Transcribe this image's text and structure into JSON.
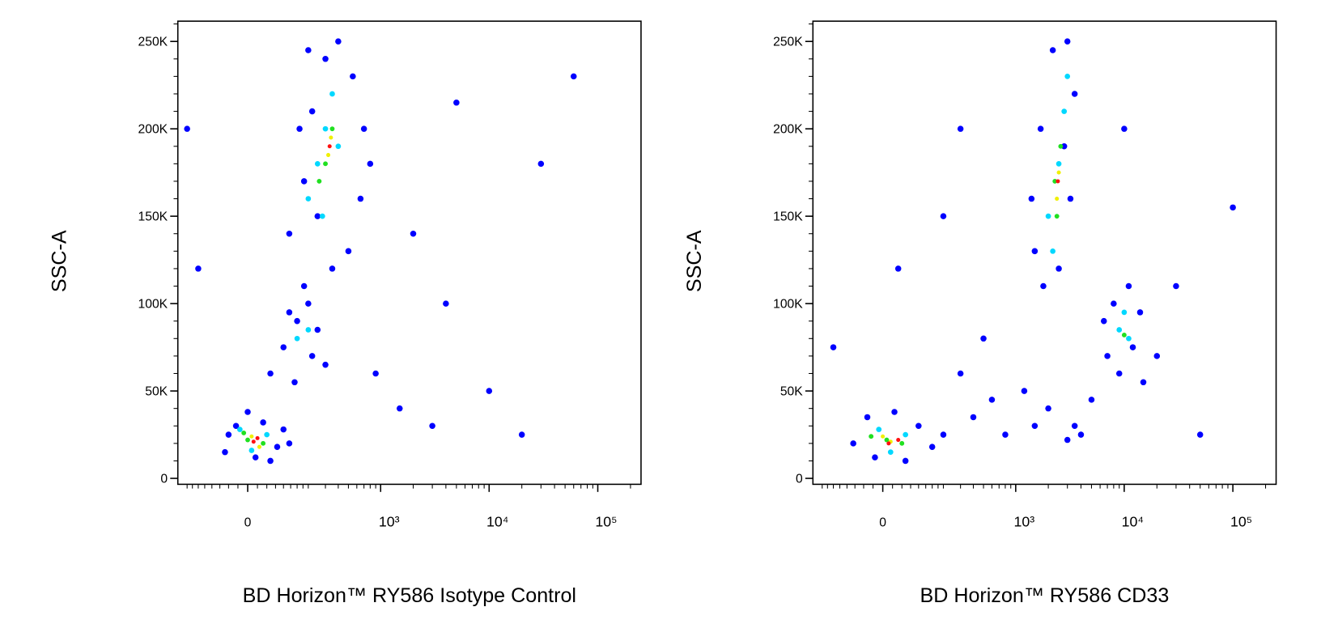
{
  "chart_data": [
    {
      "type": "scatter",
      "xlabel": "BD Horizon™ RY586 Isotype Control",
      "ylabel": "SSC-A",
      "xscale": "biexponential",
      "xlim": [
        -250,
        250000
      ],
      "ylim": [
        -3400,
        261600
      ],
      "xticks": [
        0,
        {
          "value": 1000,
          "label": "10³"
        },
        {
          "value": 10000,
          "label": "10⁴"
        },
        {
          "value": 100000,
          "label": "10⁵"
        }
      ],
      "yticks": [
        0,
        {
          "value": 50000,
          "label": "50K"
        },
        {
          "value": 100000,
          "label": "100K"
        },
        {
          "value": 150000,
          "label": "150K"
        },
        {
          "value": 200000,
          "label": "200K"
        },
        {
          "value": 250000,
          "label": "250K"
        }
      ],
      "series": [
        {
          "color": "#0000ff",
          "x": [
            -60,
            -30,
            0,
            40,
            80,
            60,
            -50,
            20,
            100,
            120,
            60,
            100,
            150,
            200,
            250,
            220,
            140,
            300,
            180,
            120,
            120,
            180,
            220,
            300,
            400,
            550,
            700,
            650,
            500,
            350,
            250,
            160,
            200,
            800,
            1500,
            3000,
            5000,
            30000,
            60000,
            2000,
            900,
            20000,
            -200,
            -150,
            10000,
            4000
          ],
          "values": [
            15000,
            30000,
            38000,
            32000,
            18000,
            10000,
            25000,
            12000,
            28000,
            20000,
            60000,
            75000,
            90000,
            100000,
            85000,
            70000,
            55000,
            65000,
            110000,
            95000,
            140000,
            170000,
            210000,
            240000,
            250000,
            230000,
            200000,
            160000,
            130000,
            120000,
            150000,
            200000,
            245000,
            180000,
            40000,
            30000,
            215000,
            180000,
            230000,
            140000,
            60000,
            25000,
            200000,
            120000,
            50000,
            100000
          ]
        },
        {
          "color": "#00d8ff",
          "x": [
            -20,
            50,
            10,
            150,
            200,
            200,
            300,
            350,
            250,
            400,
            280
          ],
          "values": [
            28000,
            25000,
            16000,
            80000,
            85000,
            160000,
            200000,
            220000,
            180000,
            190000,
            150000
          ]
        },
        {
          "color": "#20e020",
          "x": [
            0,
            40,
            -10,
            300,
            350,
            260
          ],
          "values": [
            22000,
            20000,
            26000,
            180000,
            200000,
            170000
          ]
        },
        {
          "color": "#f0f000",
          "x": [
            10,
            30,
            320,
            340
          ],
          "values": [
            24000,
            18000,
            185000,
            195000
          ]
        },
        {
          "color": "#ff1010",
          "x": [
            15,
            25,
            330
          ],
          "values": [
            21000,
            23000,
            190000
          ]
        }
      ]
    },
    {
      "type": "scatter",
      "xlabel": "BD Horizon™ RY586 CD33",
      "ylabel": "SSC-A",
      "xscale": "biexponential",
      "xlim": [
        -250,
        250000
      ],
      "ylim": [
        -3400,
        261600
      ],
      "xticks": [
        0,
        {
          "value": 1000,
          "label": "10³"
        },
        {
          "value": 10000,
          "label": "10⁴"
        },
        {
          "value": 100000,
          "label": "10⁵"
        }
      ],
      "yticks": [
        0,
        {
          "value": 50000,
          "label": "50K"
        },
        {
          "value": 100000,
          "label": "100K"
        },
        {
          "value": 150000,
          "label": "150K"
        },
        {
          "value": 200000,
          "label": "200K"
        },
        {
          "value": 250000,
          "label": "250K"
        }
      ],
      "series": [
        {
          "color": "#0000ff",
          "x": [
            -80,
            -40,
            30,
            100,
            150,
            60,
            -20,
            200,
            400,
            600,
            800,
            1200,
            1500,
            300,
            500,
            -150,
            2000,
            40,
            200,
            300,
            1500,
            1800,
            2500,
            3200,
            3500,
            3000,
            2200,
            1700,
            1400,
            2800,
            7000,
            9000,
            12000,
            14000,
            11000,
            8000,
            6500,
            15000,
            20000,
            3000,
            3500,
            4000,
            5000,
            50000,
            100000,
            30000,
            10000
          ],
          "values": [
            20000,
            35000,
            38000,
            30000,
            18000,
            10000,
            12000,
            25000,
            35000,
            45000,
            25000,
            50000,
            30000,
            60000,
            80000,
            75000,
            40000,
            120000,
            150000,
            200000,
            130000,
            110000,
            120000,
            160000,
            220000,
            250000,
            245000,
            200000,
            160000,
            190000,
            70000,
            60000,
            75000,
            95000,
            110000,
            100000,
            90000,
            55000,
            70000,
            22000,
            30000,
            25000,
            45000,
            25000,
            155000,
            110000,
            200000
          ]
        },
        {
          "color": "#00d8ff",
          "x": [
            -10,
            60,
            20,
            2000,
            2500,
            2800,
            2200,
            3000,
            9000,
            11000,
            10000
          ],
          "values": [
            28000,
            25000,
            15000,
            150000,
            180000,
            210000,
            130000,
            230000,
            85000,
            80000,
            95000
          ]
        },
        {
          "color": "#20e020",
          "x": [
            10,
            50,
            -30,
            2300,
            2600,
            2400,
            10000
          ],
          "values": [
            22000,
            20000,
            24000,
            170000,
            190000,
            150000,
            82000
          ]
        },
        {
          "color": "#f0f000",
          "x": [
            20,
            0,
            2500,
            2400
          ],
          "values": [
            21000,
            24000,
            175000,
            160000
          ]
        },
        {
          "color": "#ff1010",
          "x": [
            15,
            40,
            2450
          ],
          "values": [
            20000,
            22000,
            170000
          ]
        }
      ]
    }
  ]
}
